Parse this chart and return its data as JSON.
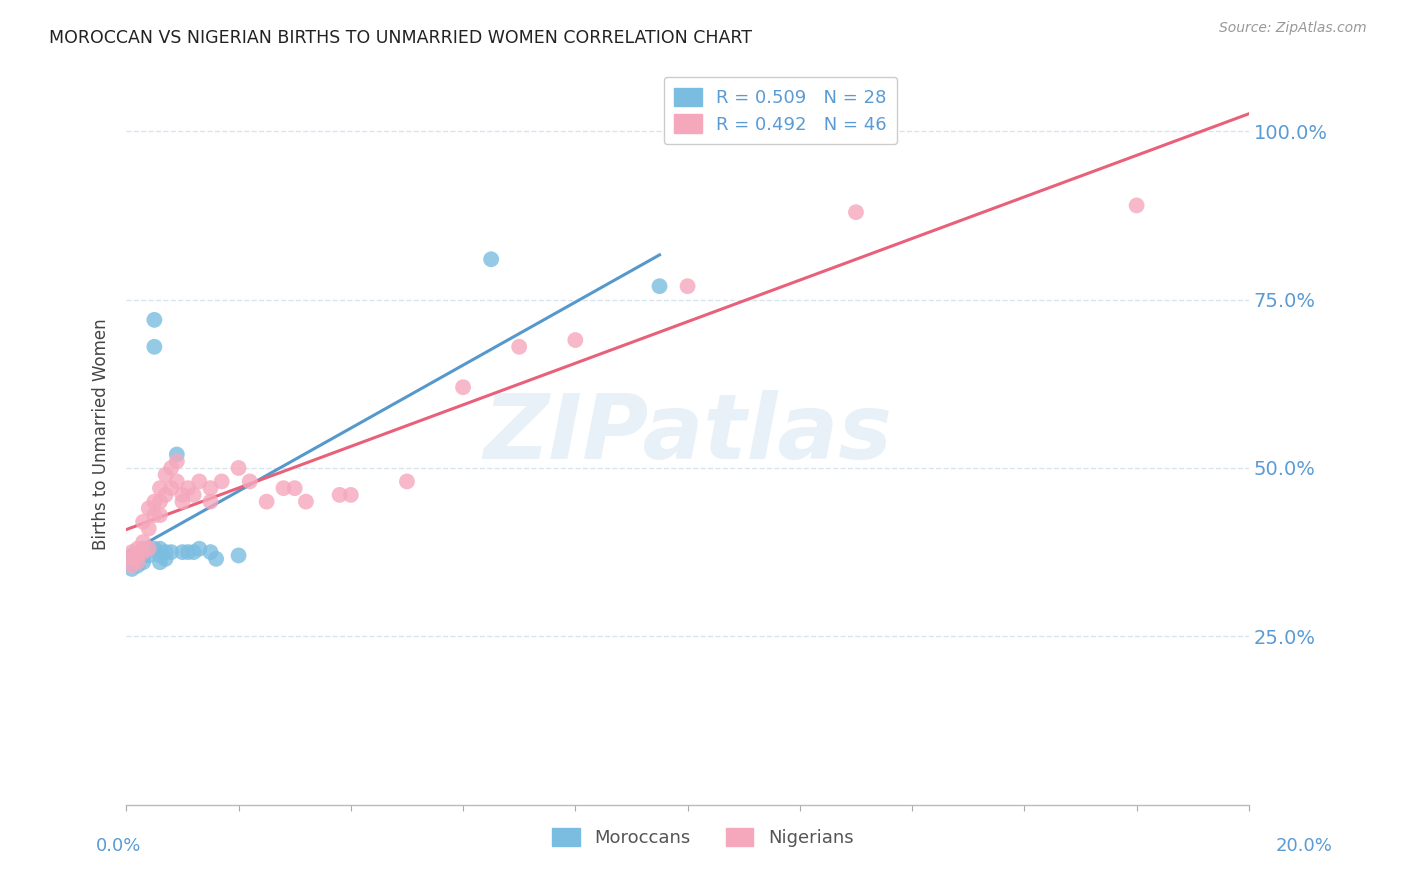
{
  "title": "MOROCCAN VS NIGERIAN BIRTHS TO UNMARRIED WOMEN CORRELATION CHART",
  "source": "Source: ZipAtlas.com",
  "ylabel": "Births to Unmarried Women",
  "legend_blue": "R = 0.509   N = 28",
  "legend_pink": "R = 0.492   N = 46",
  "legend_moroccan": "Moroccans",
  "legend_nigerian": "Nigerians",
  "watermark": "ZIPatlas",
  "blue_color": "#7bbde0",
  "pink_color": "#f5a8bc",
  "blue_line_color": "#5599cc",
  "pink_line_color": "#e8607a",
  "axis_color": "#5b9bd5",
  "grid_color": "#d8e4f0",
  "moroccan_x": [
    0.001,
    0.001,
    0.002,
    0.002,
    0.003,
    0.003,
    0.003,
    0.004,
    0.004,
    0.005,
    0.005,
    0.005,
    0.006,
    0.006,
    0.006,
    0.007,
    0.007,
    0.008,
    0.009,
    0.01,
    0.011,
    0.012,
    0.013,
    0.015,
    0.016,
    0.02,
    0.065,
    0.095
  ],
  "moroccan_y": [
    0.37,
    0.35,
    0.37,
    0.355,
    0.38,
    0.37,
    0.36,
    0.38,
    0.37,
    0.68,
    0.72,
    0.38,
    0.38,
    0.37,
    0.36,
    0.375,
    0.365,
    0.375,
    0.52,
    0.375,
    0.375,
    0.375,
    0.38,
    0.375,
    0.365,
    0.37,
    0.81,
    0.77
  ],
  "nigerian_x": [
    0.001,
    0.001,
    0.001,
    0.002,
    0.002,
    0.002,
    0.003,
    0.003,
    0.003,
    0.004,
    0.004,
    0.004,
    0.005,
    0.005,
    0.006,
    0.006,
    0.006,
    0.007,
    0.007,
    0.008,
    0.008,
    0.009,
    0.009,
    0.01,
    0.01,
    0.011,
    0.012,
    0.013,
    0.015,
    0.015,
    0.017,
    0.02,
    0.022,
    0.025,
    0.028,
    0.03,
    0.032,
    0.038,
    0.04,
    0.05,
    0.06,
    0.07,
    0.08,
    0.1,
    0.13,
    0.18
  ],
  "nigerian_y": [
    0.375,
    0.365,
    0.355,
    0.38,
    0.37,
    0.36,
    0.42,
    0.39,
    0.375,
    0.44,
    0.41,
    0.38,
    0.45,
    0.43,
    0.47,
    0.45,
    0.43,
    0.49,
    0.46,
    0.5,
    0.47,
    0.51,
    0.48,
    0.45,
    0.46,
    0.47,
    0.46,
    0.48,
    0.47,
    0.45,
    0.48,
    0.5,
    0.48,
    0.45,
    0.47,
    0.47,
    0.45,
    0.46,
    0.46,
    0.48,
    0.62,
    0.68,
    0.69,
    0.77,
    0.88,
    0.89
  ],
  "xmin": 0.0,
  "xmax": 0.2,
  "ymin": 0.0,
  "ymax": 1.1,
  "ytick_vals": [
    0.25,
    0.5,
    0.75,
    1.0
  ],
  "ytick_labels": [
    "25.0%",
    "50.0%",
    "75.0%",
    "100.0%"
  ]
}
